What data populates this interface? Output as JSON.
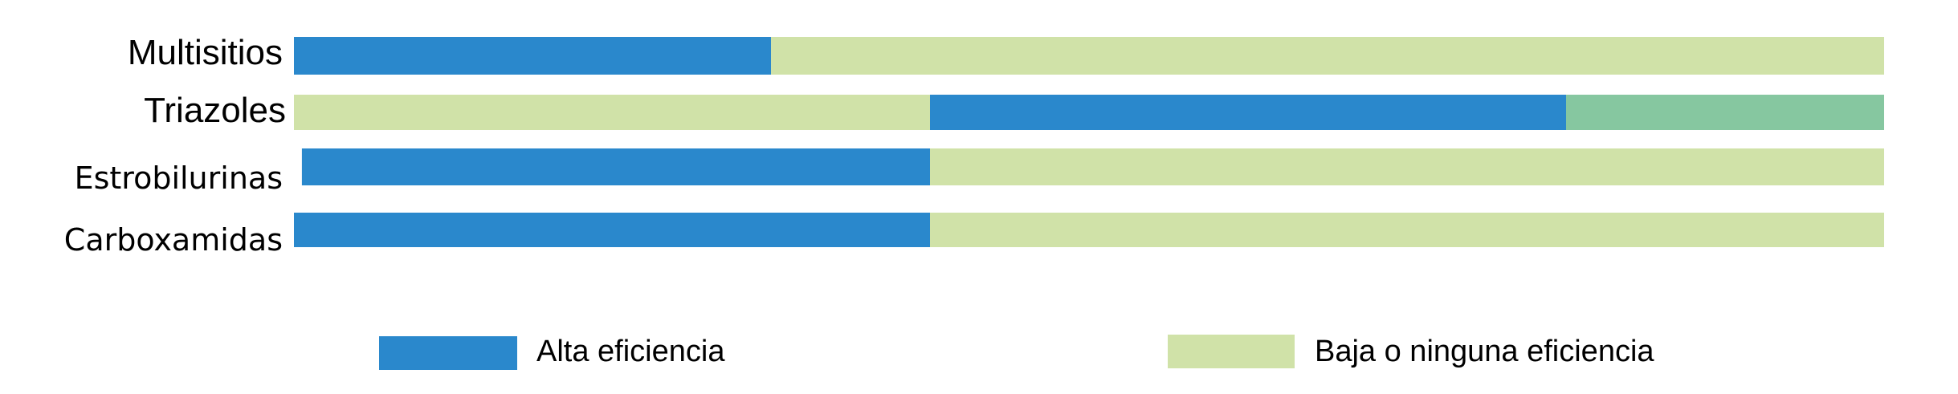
{
  "chart_data": {
    "type": "bar",
    "orientation": "horizontal",
    "stacked": true,
    "title": "",
    "xlabel": "",
    "ylabel": "",
    "xlim": [
      0,
      1
    ],
    "grid": false,
    "legend_placement": "bottom",
    "categories": [
      "Multisitios",
      "Triazoles",
      "Estrobilurinas",
      "Carboxamidas"
    ],
    "rows": [
      {
        "category": "Multisitios",
        "segments": [
          {
            "key": "alta",
            "start": 0.0,
            "end": 0.3
          },
          {
            "key": "baja",
            "start": 0.3,
            "end": 1.0
          }
        ]
      },
      {
        "category": "Triazoles",
        "segments": [
          {
            "key": "baja",
            "start": 0.0,
            "end": 0.4
          },
          {
            "key": "alta",
            "start": 0.4,
            "end": 0.8
          },
          {
            "key": "media",
            "start": 0.8,
            "end": 1.0
          }
        ]
      },
      {
        "category": "Estrobilurinas",
        "segments": [
          {
            "key": "alta",
            "start": 0.005,
            "end": 0.4
          },
          {
            "key": "baja",
            "start": 0.4,
            "end": 1.0
          }
        ]
      },
      {
        "category": "Carboxamidas",
        "segments": [
          {
            "key": "alta",
            "start": 0.0,
            "end": 0.4
          },
          {
            "key": "baja",
            "start": 0.4,
            "end": 1.0
          }
        ]
      }
    ],
    "legend": [
      {
        "key": "alta",
        "label": "Alta eficiencia"
      },
      {
        "key": "baja",
        "label": "Baja o ninguna eficiencia"
      }
    ],
    "colors": {
      "alta": "#2a88cc",
      "baja": "#d0e2a8",
      "media": "#86c7a0"
    }
  }
}
